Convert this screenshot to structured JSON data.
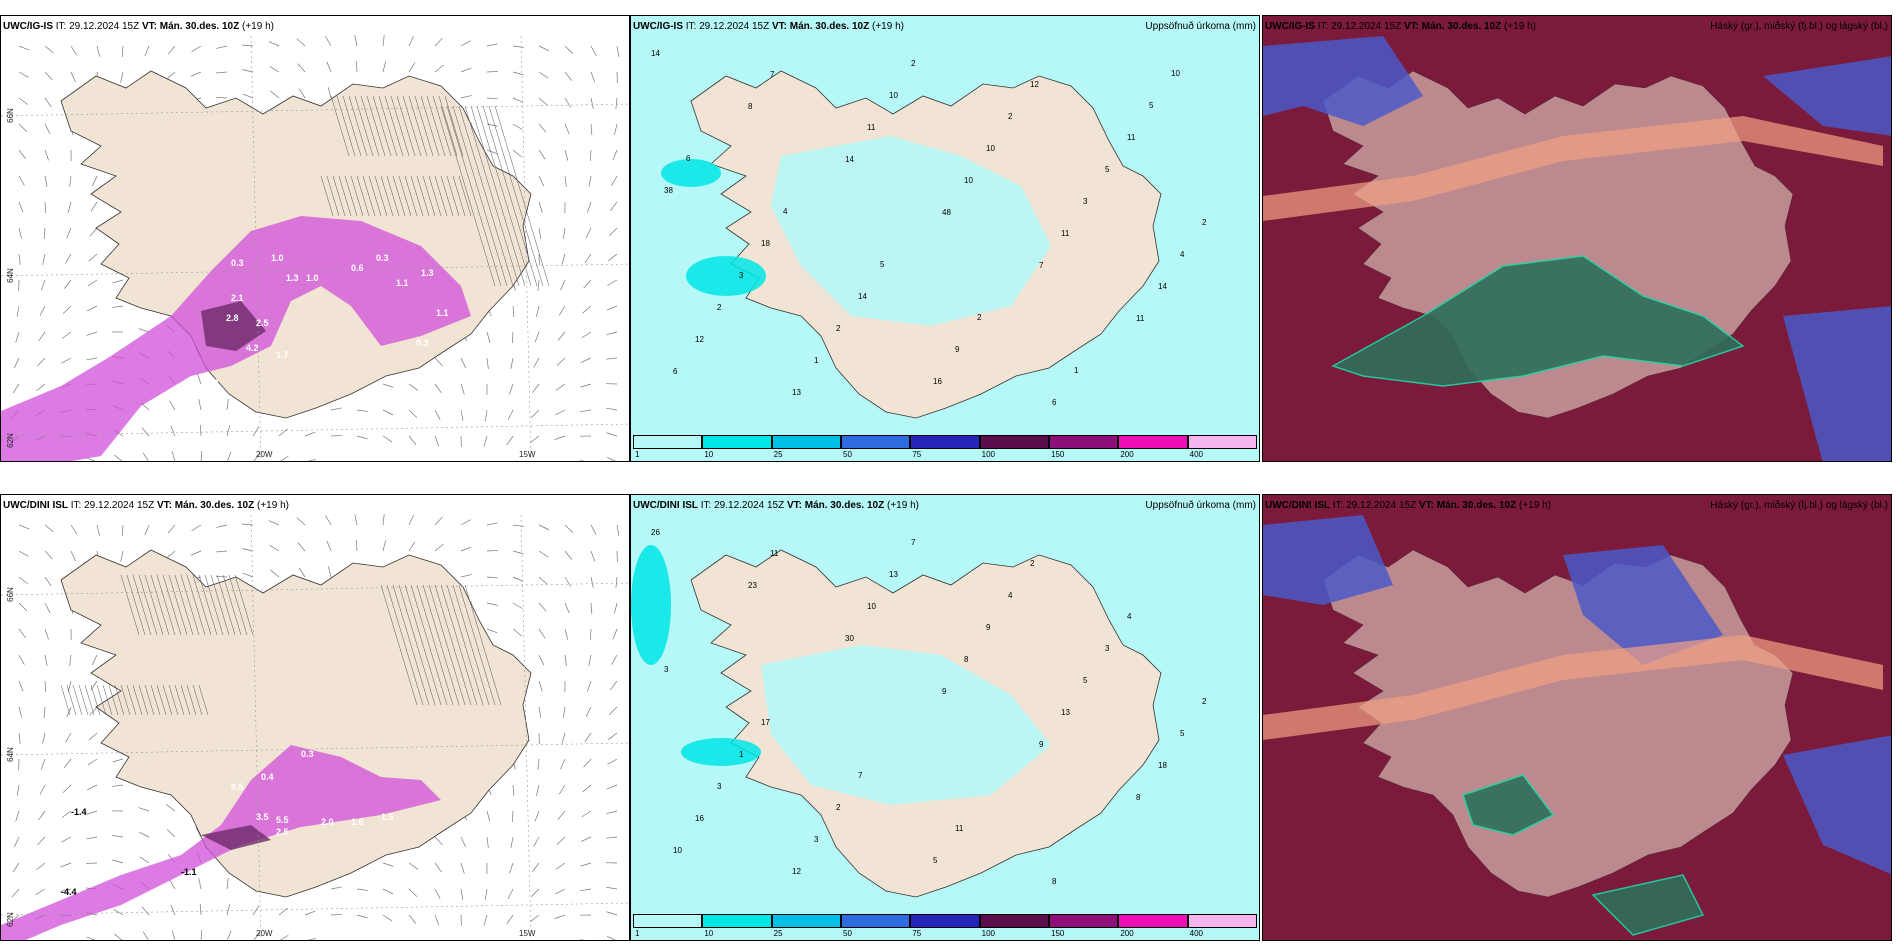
{
  "panels": [
    {
      "id": "top-wind",
      "model": "UWC/IG-IS",
      "it": "IT: 29.12.2024 15Z",
      "vt": "VT: Mán. 30.des. 10Z",
      "lead": "(+19 h)",
      "right_title": "",
      "lon_labels": [
        "20W",
        "15W"
      ],
      "lat_labels": [
        "66N",
        "64N",
        "62N"
      ]
    },
    {
      "id": "top-precip",
      "model": "UWC/IG-IS",
      "it": "IT: 29.12.2024 15Z",
      "vt": "VT: Mán. 30.des. 10Z",
      "lead": "(+19 h)",
      "right_title": "Uppsöfnuð úrkoma (mm)"
    },
    {
      "id": "top-cloud",
      "model": "UWC/IG-IS",
      "it": "IT: 29.12.2024 15Z",
      "vt": "VT: Mán. 30.des. 10Z",
      "lead": "(+19 h)",
      "right_title": "Háský (gr.), miðský (fj.bl.) og lágský (bl.)"
    },
    {
      "id": "bot-wind",
      "model": "UWC/DINI ISL",
      "it": "IT: 29.12.2024 15Z",
      "vt": "VT: Mán. 30.des. 10Z",
      "lead": "(+19 h)",
      "right_title": "",
      "lon_labels": [
        "20W",
        "15W"
      ],
      "lat_labels": [
        "66N",
        "64N",
        "62N"
      ]
    },
    {
      "id": "bot-precip",
      "model": "UWC/DINI ISL",
      "it": "IT: 29.12.2024 15Z",
      "vt": "VT: Mán. 30.des. 10Z",
      "lead": "(+19 h)",
      "right_title": "Uppsöfnuð úrkoma (mm)"
    },
    {
      "id": "bot-cloud",
      "model": "UWC/DINI ISL",
      "it": "IT: 29.12.2024 15Z",
      "vt": "VT: Mán. 30.des. 10Z",
      "lead": "(+19 h)",
      "right_title": "Háský (gr.), miðský (fj.bl.) og lágský (bl.)"
    }
  ],
  "precip_legend": {
    "ticks": [
      "1",
      "10",
      "25",
      "50",
      "75",
      "100",
      "150",
      "200",
      "400"
    ],
    "colors": [
      "#b6f7f7",
      "#00e6e6",
      "#00bfe6",
      "#2e6bdf",
      "#2424b8",
      "#5a0f4a",
      "#8f0f7a",
      "#ee10b4",
      "#f5b6f0"
    ]
  },
  "colors": {
    "land": "#f2e4d4",
    "sea": "#ffffff",
    "precip_light": "#b6f7f7",
    "wind_precip": "#d04fd9",
    "wind_precip_dark": "#6d2a6a",
    "cloud_high": "#7b1a3a",
    "cloud_mid": "#4b59c8",
    "cloud_low": "#2e6f5a"
  },
  "top_precip_values": [
    "14",
    "8",
    "14",
    "48",
    "7",
    "11",
    "6",
    "7",
    "11",
    "10",
    "11",
    "14",
    "12",
    "13",
    "10",
    "10",
    "3",
    "4",
    "2",
    "1",
    "2",
    "2",
    "5",
    "2",
    "3",
    "2",
    "16",
    "12",
    "11",
    "38",
    "18",
    "14",
    "9",
    "6",
    "5",
    "6",
    "4",
    "5",
    "2",
    "1",
    "10"
  ],
  "bot_precip_values": [
    "26",
    "23",
    "30",
    "9",
    "9",
    "8",
    "10",
    "11",
    "10",
    "8",
    "13",
    "18",
    "16",
    "12",
    "13",
    "9",
    "5",
    "5",
    "3",
    "3",
    "7",
    "4",
    "3",
    "2",
    "1",
    "2",
    "5",
    "2",
    "4",
    "3",
    "17",
    "7",
    "11",
    "8"
  ],
  "top_wind_values": [
    "0.3",
    "1.0",
    "1.3",
    "1.0",
    "0.6",
    "2.1",
    "2.8",
    "2.5",
    "4.2",
    "1.7",
    "3.3",
    "2.1",
    "1.7",
    "0.3",
    "1.3",
    "1.1",
    "1.1",
    "0.3"
  ],
  "bot_wind_values": [
    "0.3",
    "0.5",
    "0.4",
    "3.5",
    "5.5",
    "2.0",
    "1.6",
    "1.5",
    "2.5",
    "4.2",
    "2.6",
    "4.4",
    "-1.4",
    "-1.1",
    "-4.4",
    "3.0"
  ]
}
